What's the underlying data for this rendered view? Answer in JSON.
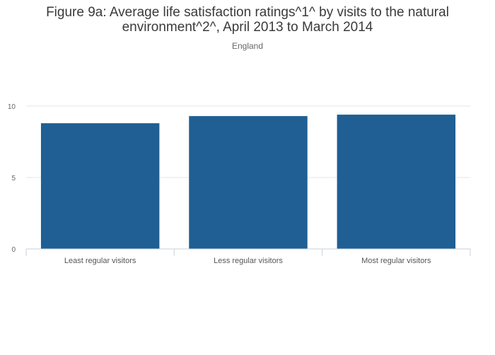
{
  "chart_data": {
    "type": "bar",
    "title": "Figure 9a: Average life satisfaction ratings^1^ by visits to the natural environment^2^, April 2013 to March 2014",
    "subtitle": "England",
    "categories": [
      "Least regular visitors",
      "Less regular visitors",
      "Most regular visitors"
    ],
    "values": [
      8.8,
      9.3,
      9.4
    ],
    "xlabel": "",
    "ylabel": "",
    "ylim": [
      0,
      10
    ],
    "yticks": [
      0,
      5,
      10
    ],
    "grid": true,
    "legend": "none",
    "bar_color": "#1f5f93"
  }
}
